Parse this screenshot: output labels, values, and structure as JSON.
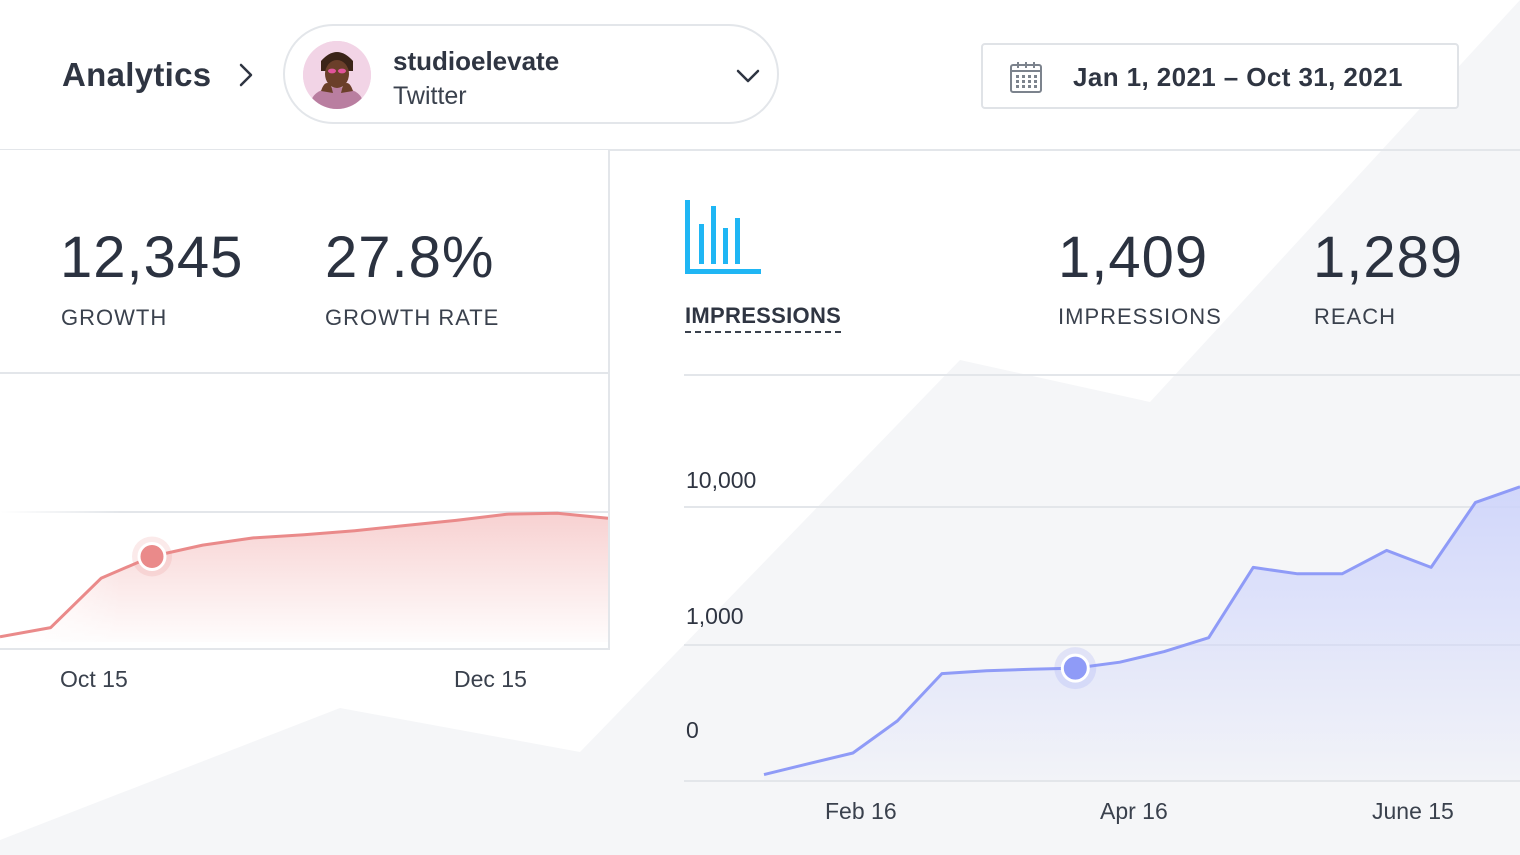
{
  "breadcrumb": {
    "title": "Analytics"
  },
  "account": {
    "name": "studioelevate",
    "network": "Twitter"
  },
  "date_range": {
    "label": "Jan 1, 2021 – Oct 31, 2021"
  },
  "growth": {
    "count_value": "12,345",
    "count_label": "GROWTH",
    "rate_value": "27.8%",
    "rate_label": "GROWTH RATE",
    "x_labels": [
      "Oct 15",
      "Dec 15"
    ]
  },
  "impressions": {
    "tab_label": "IMPRESSIONS",
    "impressions_value": "1,409",
    "impressions_label": "IMPRESSIONS",
    "reach_value": "1,289",
    "reach_label": "REACH",
    "y_labels": [
      "10,000",
      "1,000",
      "0"
    ],
    "x_labels": [
      "Feb 16",
      "Apr 16",
      "June 15"
    ]
  },
  "colors": {
    "growth_line": "#ea8a8a",
    "growth_fill": "#f6c9c9",
    "impressions_line": "#8f9bf7",
    "impressions_fill": "#cdd3fb",
    "impressions_icon": "#1fb6f4"
  },
  "chart_data": [
    {
      "type": "area",
      "title": "GROWTH",
      "series": [
        {
          "name": "Growth",
          "values": [
            5,
            14,
            62,
            83,
            94,
            101,
            104,
            108,
            113,
            118,
            124,
            125,
            120
          ]
        }
      ],
      "highlight_index": 3,
      "ylim": [
        0,
        260
      ],
      "x_tick_labels": [
        "Oct 15",
        "Dec 15"
      ],
      "grid": true
    },
    {
      "type": "area",
      "title": "IMPRESSIONS",
      "yscale": "log",
      "y_tick_labels": [
        "0",
        "1,000",
        "10,000"
      ],
      "x_tick_labels": [
        "Feb 16",
        "Apr 16",
        "June 15"
      ],
      "series": [
        {
          "name": "Impressions",
          "values": [
            115,
            138,
            165,
            282,
            620,
            650,
            667,
            680,
            750,
            895,
            1130,
            3650,
            3280,
            3280,
            4850,
            3650,
            10800,
            14000
          ]
        }
      ],
      "highlight_index": 7,
      "grid": true
    }
  ]
}
